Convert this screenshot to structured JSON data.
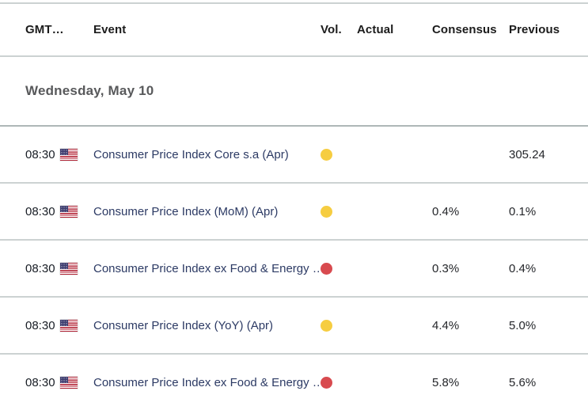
{
  "table": {
    "columns": {
      "gmt": "GMT…",
      "event": "Event",
      "vol": "Vol.",
      "actual": "Actual",
      "consensus": "Consensus",
      "previous": "Previous"
    },
    "date_header": "Wednesday, May 10",
    "rows": [
      {
        "time": "08:30",
        "flag_icon": "us-flag-icon",
        "event": "Consumer Price Index Core s.a (Apr)",
        "volatility": "medium",
        "actual": "",
        "consensus": "",
        "previous": "305.24"
      },
      {
        "time": "08:30",
        "flag_icon": "us-flag-icon",
        "event": "Consumer Price Index (MoM) (Apr)",
        "volatility": "medium",
        "actual": "",
        "consensus": "0.4%",
        "previous": "0.1%"
      },
      {
        "time": "08:30",
        "flag_icon": "us-flag-icon",
        "event": "Consumer Price Index ex Food & Energy …",
        "volatility": "high",
        "actual": "",
        "consensus": "0.3%",
        "previous": "0.4%"
      },
      {
        "time": "08:30",
        "flag_icon": "us-flag-icon",
        "event": "Consumer Price Index (YoY) (Apr)",
        "volatility": "medium",
        "actual": "",
        "consensus": "4.4%",
        "previous": "5.0%"
      },
      {
        "time": "08:30",
        "flag_icon": "us-flag-icon",
        "event": "Consumer Price Index ex Food & Energy …",
        "volatility": "high",
        "actual": "",
        "consensus": "5.8%",
        "previous": "5.6%"
      }
    ],
    "colors": {
      "volatility_medium": "#f6cd41",
      "volatility_high": "#d84a4f",
      "event_text": "#2c3a64",
      "separator": "#ccd2d2"
    }
  }
}
